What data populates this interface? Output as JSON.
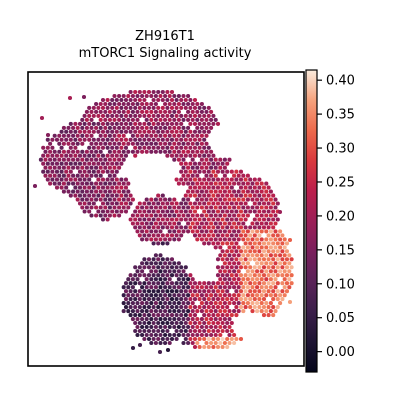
{
  "chart_data": {
    "type": "heatmap",
    "subtype": "spatial-hex-spot-map",
    "title": "ZH916T1",
    "subtitle": "mTORC1 Signaling activity",
    "xlabel": "",
    "ylabel": "",
    "grid": false,
    "colormap": "rocket",
    "colorbar": {
      "range": [
        -0.03,
        0.415
      ],
      "ticks": [
        0.0,
        0.05,
        0.1,
        0.15,
        0.2,
        0.25,
        0.3,
        0.35,
        0.4
      ],
      "tick_labels": [
        "0.00",
        "0.05",
        "0.10",
        "0.15",
        "0.20",
        "0.25",
        "0.30",
        "0.35",
        "0.40"
      ]
    },
    "regions": [
      {
        "location": "top-lobe",
        "typical_value": 0.18
      },
      {
        "location": "left-lobe",
        "typical_value": 0.16
      },
      {
        "location": "right-lobe",
        "typical_value": 0.22
      },
      {
        "location": "lower-right-edge",
        "typical_value": 0.33
      },
      {
        "location": "bottom-stalk",
        "typical_value": 0.08
      },
      {
        "location": "bottom-rim",
        "typical_value": 0.35
      }
    ]
  }
}
